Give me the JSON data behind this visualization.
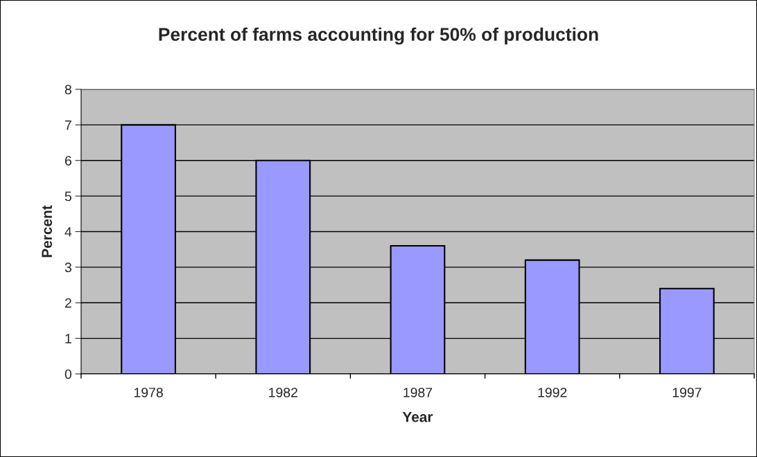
{
  "chart_data": {
    "type": "bar",
    "title": "Percent of farms accounting for 50% of production",
    "xlabel": "Year",
    "ylabel": "Percent",
    "categories": [
      "1978",
      "1982",
      "1987",
      "1992",
      "1997"
    ],
    "values": [
      7,
      6,
      3.6,
      3.2,
      2.4
    ],
    "color": "#9999ff",
    "ylim": [
      0,
      8
    ],
    "yticks": [
      0,
      1,
      2,
      3,
      4,
      5,
      6,
      7,
      8
    ],
    "grid": "y",
    "legend": false
  }
}
